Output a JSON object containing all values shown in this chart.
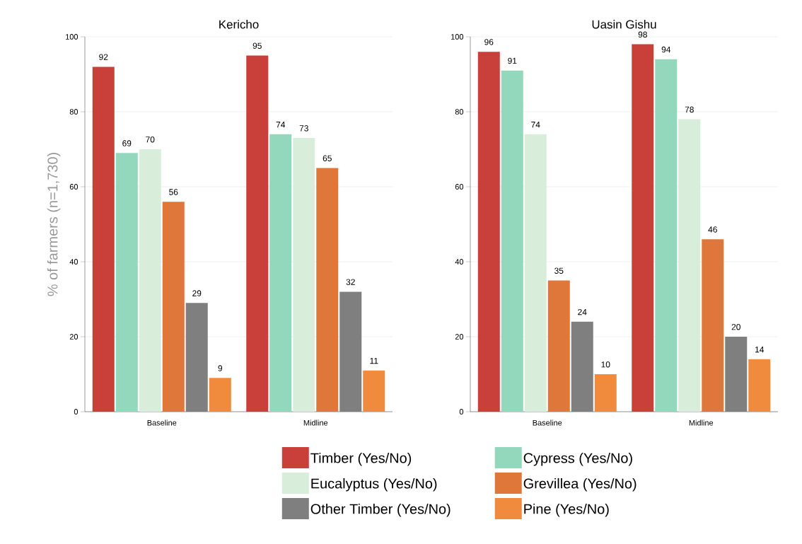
{
  "chart_data": [
    {
      "type": "bar",
      "title": "Kericho",
      "ylabel": "% of farmers (n=1,730)",
      "categories": [
        "Baseline",
        "Midline"
      ],
      "ylim": [
        0,
        100
      ],
      "yticks": [
        0,
        20,
        40,
        60,
        80,
        100
      ],
      "grid": "y",
      "data_labels": true,
      "legend": "bottom",
      "series": [
        {
          "name": "Timber (Yes/No)",
          "color": "#c9403a",
          "values": [
            92,
            95
          ]
        },
        {
          "name": "Cypress (Yes/No)",
          "color": "#93d8bd",
          "values": [
            69,
            74
          ]
        },
        {
          "name": "Eucalyptus (Yes/No)",
          "color": "#d8eedb",
          "values": [
            70,
            73
          ]
        },
        {
          "name": "Grevillea (Yes/No)",
          "color": "#e0773a",
          "values": [
            56,
            65
          ]
        },
        {
          "name": "Other Timber (Yes/No)",
          "color": "#7f7f7f",
          "values": [
            29,
            32
          ]
        },
        {
          "name": "Pine (Yes/No)",
          "color": "#f08a3c",
          "values": [
            9,
            11
          ]
        }
      ]
    },
    {
      "type": "bar",
      "title": "Uasin Gishu",
      "categories": [
        "Baseline",
        "Midline"
      ],
      "ylim": [
        0,
        100
      ],
      "yticks": [
        0,
        20,
        40,
        60,
        80,
        100
      ],
      "grid": "y",
      "data_labels": true,
      "series": [
        {
          "color": "#c9403a",
          "values": [
            96,
            98
          ]
        },
        {
          "color": "#93d8bd",
          "values": [
            91,
            94
          ]
        },
        {
          "color": "#d8eedb",
          "values": [
            74,
            78
          ]
        },
        {
          "color": "#e0773a",
          "values": [
            35,
            46
          ]
        },
        {
          "color": "#7f7f7f",
          "values": [
            24,
            20
          ]
        },
        {
          "color": "#f08a3c",
          "values": [
            10,
            14
          ]
        }
      ]
    }
  ]
}
